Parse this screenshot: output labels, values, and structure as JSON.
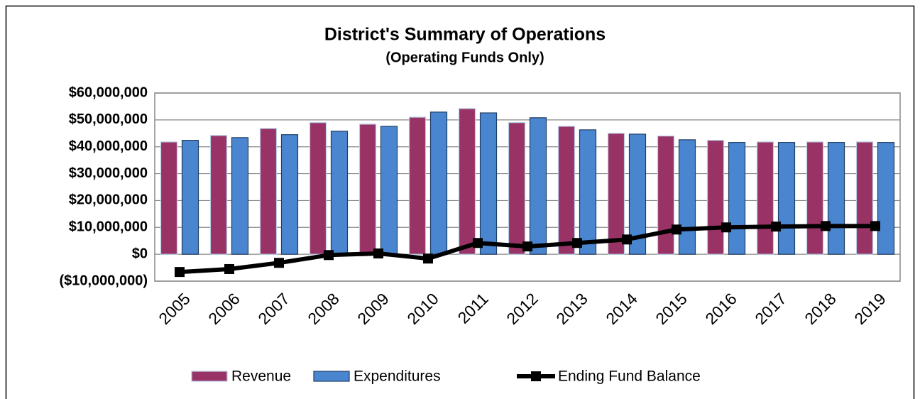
{
  "chart_data": {
    "type": "bar_line",
    "title": "District's Summary of Operations",
    "subtitle": "(Operating Funds Only)",
    "categories": [
      "2005",
      "2006",
      "2007",
      "2008",
      "2009",
      "2010",
      "2011",
      "2012",
      "2013",
      "2014",
      "2015",
      "2016",
      "2017",
      "2018",
      "2019"
    ],
    "series": [
      {
        "name": "Revenue",
        "type": "bar",
        "color": "#993366",
        "values": [
          41800000,
          44200000,
          46800000,
          49000000,
          48400000,
          51000000,
          54200000,
          49000000,
          47600000,
          45000000,
          44000000,
          42400000,
          41800000,
          41800000,
          41800000
        ]
      },
      {
        "name": "Expenditures",
        "type": "bar",
        "color": "#4a86d0",
        "values": [
          42400000,
          43400000,
          44500000,
          45800000,
          47600000,
          52900000,
          52600000,
          50800000,
          46300000,
          44700000,
          42600000,
          41600000,
          41600000,
          41600000,
          41600000
        ]
      },
      {
        "name": "Ending Fund Balance",
        "type": "line",
        "color": "#000000",
        "values": [
          -6600000,
          -5500000,
          -3200000,
          -300000,
          300000,
          -1600000,
          4200000,
          2900000,
          4200000,
          5500000,
          9200000,
          10000000,
          10300000,
          10500000,
          10500000
        ]
      }
    ],
    "ylim": [
      -10000000,
      60000000
    ],
    "yticks": [
      {
        "value": -10000000,
        "label": "($10,000,000)"
      },
      {
        "value": 0,
        "label": "$0"
      },
      {
        "value": 10000000,
        "label": "$10,000,000"
      },
      {
        "value": 20000000,
        "label": "$20,000,000"
      },
      {
        "value": 30000000,
        "label": "$30,000,000"
      },
      {
        "value": 40000000,
        "label": "$40,000,000"
      },
      {
        "value": 50000000,
        "label": "$50,000,000"
      },
      {
        "value": 60000000,
        "label": "$60,000,000"
      }
    ],
    "grid": true,
    "legend": "bottom"
  }
}
